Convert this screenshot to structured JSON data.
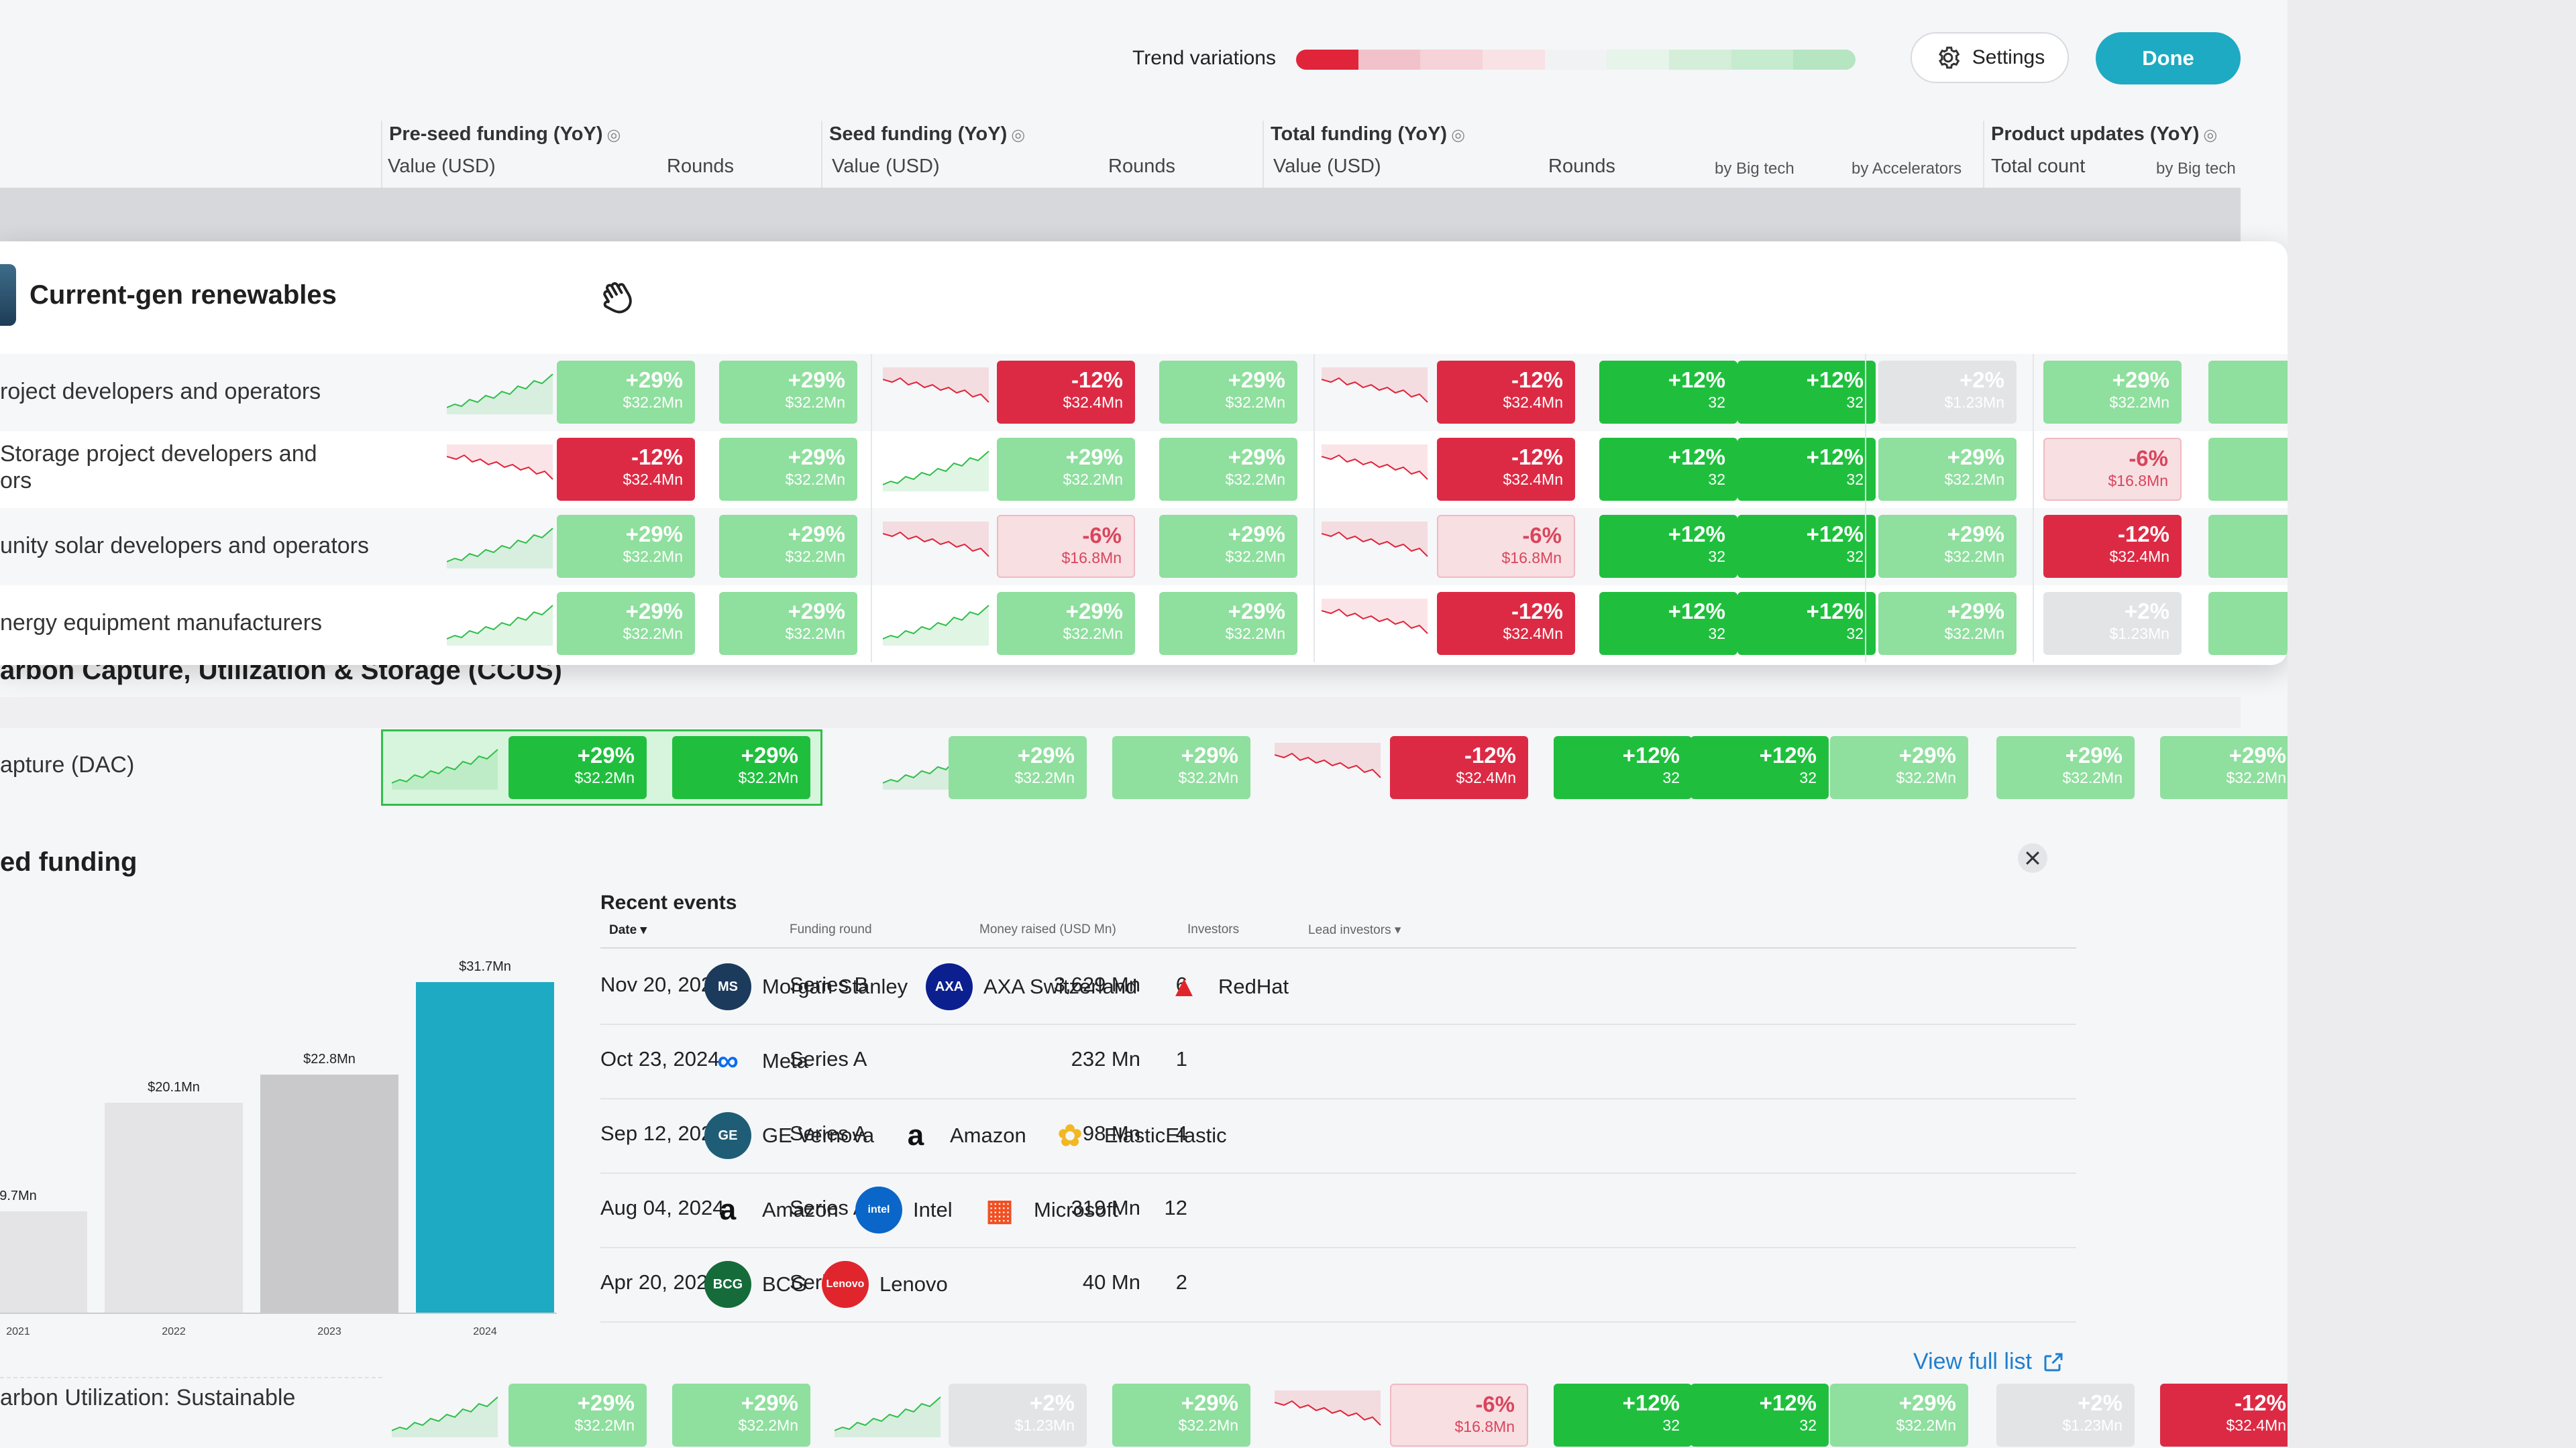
{
  "toolbar": {
    "trend_label": "Trend variations",
    "trend_colors": [
      "#e0253b",
      "#f1c2c9",
      "#f5d3d8",
      "#f8e2e5",
      "#f1f2f4",
      "#e6f4e9",
      "#d4eed9",
      "#c6ebcf",
      "#b6e5c1"
    ],
    "settings_label": "Settings",
    "done_label": "Done"
  },
  "colors": {
    "accent": "#1eaac2",
    "strong_green": "#1fbf3d",
    "light_green": "#8fdf9e",
    "strong_red": "#dd2a44",
    "light_red": "#f7dfe2",
    "neutral": "#e3e4e6",
    "link": "#1f7fcf"
  },
  "headers": {
    "preseed": {
      "title": "Pre-seed funding (YoY)",
      "value": "Value (USD)",
      "rounds": "Rounds"
    },
    "seed": {
      "title": "Seed funding (YoY)",
      "value": "Value (USD)",
      "rounds": "Rounds"
    },
    "total": {
      "title": "Total funding (YoY)",
      "value": "Value (USD)",
      "rounds": "Rounds",
      "bigtech": "by Big tech",
      "accel": "by Accelerators"
    },
    "product": {
      "title": "Product updates (YoY)",
      "count": "Total count",
      "bigtech": "by Big tech"
    }
  },
  "card": {
    "title": "Current-gen renewables",
    "rows": [
      {
        "label": "roject developers and operators",
        "cells": [
          [
            "+29%",
            "$32.2Mn"
          ],
          [
            "+29%",
            "$32.2Mn"
          ],
          [
            "-12%",
            "$32.4Mn"
          ],
          [
            "+29%",
            "$32.2Mn"
          ],
          [
            "-12%",
            "$32.4Mn"
          ],
          [
            "+12%",
            "32"
          ],
          [
            "+12%",
            "32"
          ],
          [
            "+2%",
            "$1.23Mn"
          ],
          [
            "+29%",
            "$32.2Mn"
          ],
          [
            "",
            ""
          ]
        ]
      },
      {
        "label": "Storage project developers and\nors",
        "cells": [
          [
            "-12%",
            "$32.4Mn"
          ],
          [
            "+29%",
            "$32.2Mn"
          ],
          [
            "+29%",
            "$32.2Mn"
          ],
          [
            "+29%",
            "$32.2Mn"
          ],
          [
            "-12%",
            "$32.4Mn"
          ],
          [
            "+12%",
            "32"
          ],
          [
            "+12%",
            "32"
          ],
          [
            "+29%",
            "$32.2Mn"
          ],
          [
            "-6%",
            "$16.8Mn"
          ],
          [
            "",
            ""
          ]
        ]
      },
      {
        "label": "unity solar developers and operators",
        "cells": [
          [
            "+29%",
            "$32.2Mn"
          ],
          [
            "+29%",
            "$32.2Mn"
          ],
          [
            "-6%",
            "$16.8Mn"
          ],
          [
            "+29%",
            "$32.2Mn"
          ],
          [
            "-6%",
            "$16.8Mn"
          ],
          [
            "+12%",
            "32"
          ],
          [
            "+12%",
            "32"
          ],
          [
            "+29%",
            "$32.2Mn"
          ],
          [
            "-12%",
            "$32.4Mn"
          ],
          [
            "",
            ""
          ]
        ]
      },
      {
        "label": "nergy equipment manufacturers",
        "cells": [
          [
            "+29%",
            "$32.2Mn"
          ],
          [
            "+29%",
            "$32.2Mn"
          ],
          [
            "+29%",
            "$32.2Mn"
          ],
          [
            "+29%",
            "$32.2Mn"
          ],
          [
            "-12%",
            "$32.4Mn"
          ],
          [
            "+12%",
            "32"
          ],
          [
            "+12%",
            "32"
          ],
          [
            "+29%",
            "$32.2Mn"
          ],
          [
            "+2%",
            "$1.23Mn"
          ],
          [
            "",
            ""
          ]
        ]
      }
    ]
  },
  "ccus": {
    "title": "arbon Capture, Utilization & Storage (CCUS)",
    "dac_label": "apture (DAC)",
    "dac_cells": [
      [
        "+29%",
        "$32.2Mn"
      ],
      [
        "+29%",
        "$32.2Mn"
      ],
      [
        "+29%",
        "$32.2Mn"
      ],
      [
        "+29%",
        "$32.2Mn"
      ],
      [
        "-12%",
        "$32.4Mn"
      ],
      [
        "+12%",
        "32"
      ],
      [
        "+12%",
        "32"
      ],
      [
        "+29%",
        "$32.2Mn"
      ],
      [
        "+29%",
        "$32.2Mn"
      ],
      [
        "+29%",
        "$32.2Mn"
      ]
    ]
  },
  "funding_chart": {
    "title": "ed funding"
  },
  "chart_data": {
    "type": "bar",
    "categories": [
      "2021",
      "2022",
      "2023",
      "2024"
    ],
    "values": [
      9.7,
      20.1,
      22.8,
      31.7
    ],
    "labels": [
      "9.7Mn",
      "$20.1Mn",
      "$22.8Mn",
      "$31.7Mn"
    ],
    "ylim": [
      0,
      36
    ],
    "colors": [
      "#e4e4e6",
      "#e4e4e6",
      "#c9c9cc",
      "#1eaac2"
    ]
  },
  "events": {
    "title": "Recent events",
    "headers": {
      "date": "Date",
      "round": "Funding round",
      "money": "Money raised (USD Mn)",
      "investors": "Investors",
      "lead": "Lead investors"
    },
    "rows": [
      {
        "date": "Nov 20, 2024",
        "round": "Series B",
        "money": "3,629 Mn",
        "investors": "6",
        "leads": [
          {
            "name": "Morgan Stanley",
            "icon": "morgan-stanley-logo"
          },
          {
            "name": "AXA Switzerland",
            "icon": "axa-logo"
          },
          {
            "name": "RedHat",
            "icon": "redhat-logo"
          }
        ]
      },
      {
        "date": "Oct 23, 2024",
        "round": "Series A",
        "money": "232 Mn",
        "investors": "1",
        "leads": [
          {
            "name": "Meta",
            "icon": "meta-logo"
          }
        ]
      },
      {
        "date": "Sep 12, 2024",
        "round": "Series A",
        "money": "98 Mn",
        "investors": "4",
        "leads": [
          {
            "name": "GE Vernova",
            "icon": "ge-logo"
          },
          {
            "name": "Amazon",
            "icon": "amazon-logo"
          },
          {
            "name": "ElasticElastic",
            "icon": "elastic-logo"
          }
        ]
      },
      {
        "date": "Aug 04, 2024",
        "round": "Series A",
        "money": "319 Mn",
        "investors": "12",
        "leads": [
          {
            "name": "Amazon",
            "icon": "amazon-logo"
          },
          {
            "name": "Intel",
            "icon": "intel-logo"
          },
          {
            "name": "Microsoft",
            "icon": "microsoft-logo"
          }
        ]
      },
      {
        "date": "Apr 20, 2021",
        "round": "Series A",
        "money": "40 Mn",
        "investors": "2",
        "leads": [
          {
            "name": "BCG",
            "icon": "bcg-logo"
          },
          {
            "name": "Lenovo",
            "icon": "lenovo-logo"
          }
        ]
      }
    ],
    "view_full": "View full list"
  },
  "bottom_row": {
    "label": "arbon Utilization: Sustainable",
    "cells": [
      [
        "+29%",
        "$32.2Mn"
      ],
      [
        "+29%",
        "$32.2Mn"
      ],
      [
        "+2%",
        "$1.23Mn"
      ],
      [
        "+29%",
        "$32.2Mn"
      ],
      [
        "-6%",
        "$16.8Mn"
      ],
      [
        "+12%",
        "32"
      ],
      [
        "+12%",
        "32"
      ],
      [
        "+29%",
        "$32.2Mn"
      ],
      [
        "+2%",
        "$1.23Mn"
      ],
      [
        "-12%",
        "$32.4Mn"
      ]
    ]
  }
}
